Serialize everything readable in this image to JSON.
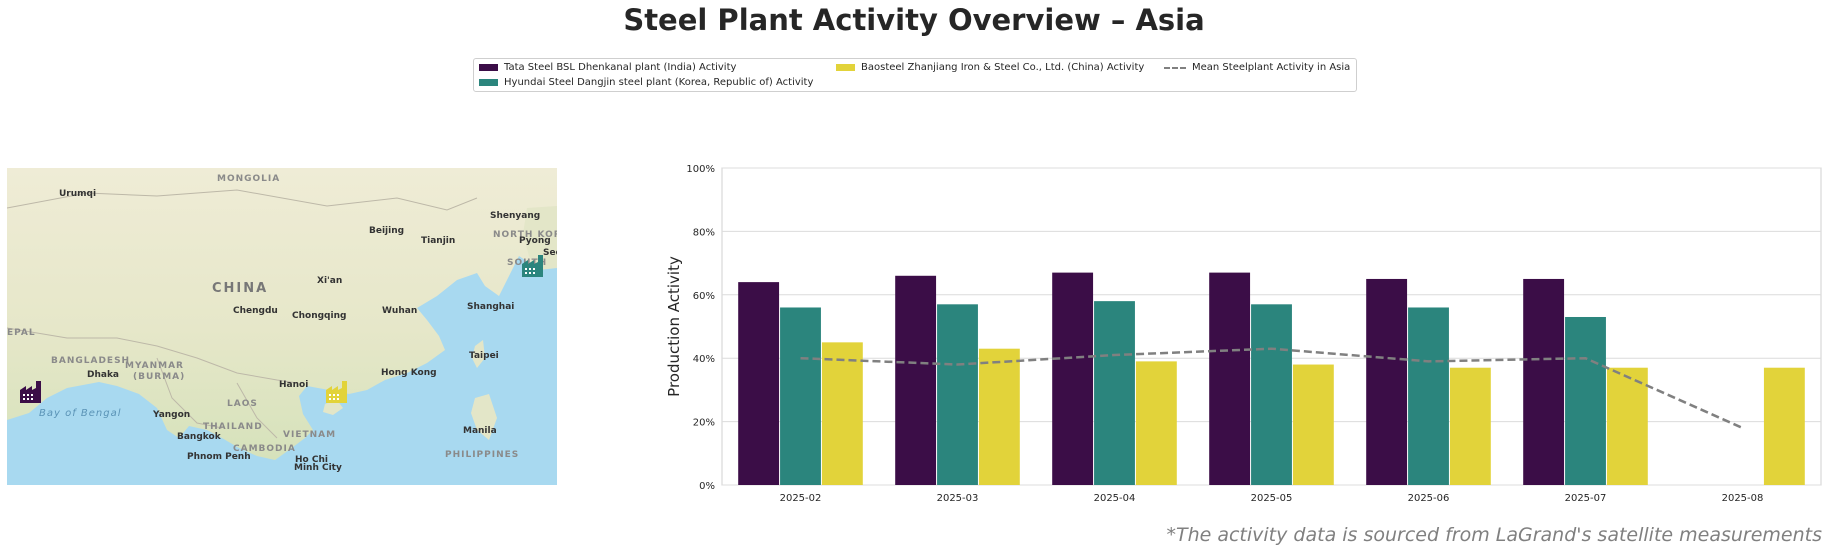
{
  "title": "Steel Plant Activity Overview – Asia",
  "footnote": "*The activity data is sourced from LaGrand's satellite measurements",
  "legend": [
    {
      "label": "Tata Steel BSL Dhenkanal plant (India) Activity",
      "kind": "bar",
      "color": "#3b0d47"
    },
    {
      "label": "Hyundai Steel Dangjin steel plant (Korea, Republic of) Activity",
      "kind": "bar",
      "color": "#2b857d"
    },
    {
      "label": "Baosteel Zhanjiang Iron & Steel Co., Ltd. (China) Activity",
      "kind": "bar",
      "color": "#e2d33a"
    },
    {
      "label": "Mean Steelplant Activity in Asia",
      "kind": "dashed-line",
      "color": "#808080"
    }
  ],
  "map": {
    "labels": [
      {
        "text": "MONGOLIA",
        "style": "region"
      },
      {
        "text": "Urumqi",
        "style": "city"
      },
      {
        "text": "Shenyang",
        "style": "city"
      },
      {
        "text": "Beijing",
        "style": "city"
      },
      {
        "text": "Tianjin",
        "style": "city"
      },
      {
        "text": "NORTH KOR",
        "style": "region"
      },
      {
        "text": "Pyong",
        "style": "city"
      },
      {
        "text": "Seo",
        "style": "city"
      },
      {
        "text": "SOUTH",
        "style": "region"
      },
      {
        "text": "CHINA",
        "style": "country"
      },
      {
        "text": "Xi'an",
        "style": "city"
      },
      {
        "text": "Chengdu",
        "style": "city"
      },
      {
        "text": "Chongqing",
        "style": "city"
      },
      {
        "text": "Wuhan",
        "style": "city"
      },
      {
        "text": "Shanghai",
        "style": "city"
      },
      {
        "text": "EPAL",
        "style": "region"
      },
      {
        "text": "BANGLADESH",
        "style": "region"
      },
      {
        "text": "Dhaka",
        "style": "city"
      },
      {
        "text": "MYANMAR",
        "style": "region"
      },
      {
        "text": "(BURMA)",
        "style": "region"
      },
      {
        "text": "Taipei",
        "style": "city"
      },
      {
        "text": "Hanoi",
        "style": "city"
      },
      {
        "text": "Hong Kong",
        "style": "city"
      },
      {
        "text": "LAOS",
        "style": "region"
      },
      {
        "text": "Bay of Bengal",
        "style": "water"
      },
      {
        "text": "Yangon",
        "style": "city"
      },
      {
        "text": "THAILAND",
        "style": "region"
      },
      {
        "text": "VIETNAM",
        "style": "region"
      },
      {
        "text": "Manila",
        "style": "city"
      },
      {
        "text": "Bangkok",
        "style": "city"
      },
      {
        "text": "CAMBODIA",
        "style": "region"
      },
      {
        "text": "Phnom Penh",
        "style": "city"
      },
      {
        "text": "Ho Chi",
        "style": "city"
      },
      {
        "text": "Minh City",
        "style": "city"
      },
      {
        "text": "PHILIPPINES",
        "style": "region"
      }
    ],
    "markers": [
      {
        "name": "tata-steel-plant-marker",
        "color": "#3b0d47"
      },
      {
        "name": "hyundai-steel-plant-marker",
        "color": "#2b857d"
      },
      {
        "name": "baosteel-plant-marker",
        "color": "#e2d33a"
      }
    ]
  },
  "chart_data": {
    "type": "bar",
    "categories": [
      "2025-02",
      "2025-03",
      "2025-04",
      "2025-05",
      "2025-06",
      "2025-07",
      "2025-08"
    ],
    "series": [
      {
        "name": "Tata Steel BSL Dhenkanal plant (India) Activity",
        "color": "#3b0d47",
        "values": [
          64,
          66,
          67,
          67,
          65,
          65,
          null
        ]
      },
      {
        "name": "Hyundai Steel Dangjin steel plant (Korea, Republic of) Activity",
        "color": "#2b857d",
        "values": [
          56,
          57,
          58,
          57,
          56,
          53,
          null
        ]
      },
      {
        "name": "Baosteel Zhanjiang Iron & Steel Co., Ltd. (China) Activity",
        "color": "#e2d33a",
        "values": [
          45,
          43,
          39,
          38,
          37,
          37,
          37
        ]
      }
    ],
    "mean_line": {
      "name": "Mean Steelplant Activity in Asia",
      "color": "#808080",
      "style": "dashed",
      "values": [
        40,
        38,
        41,
        43,
        39,
        40,
        18
      ]
    },
    "ylabel": "Production Activity",
    "xlabel": "",
    "ylim": [
      0,
      100
    ],
    "yticks": [
      "0%",
      "20%",
      "40%",
      "60%",
      "80%",
      "100%"
    ],
    "grid": true
  }
}
